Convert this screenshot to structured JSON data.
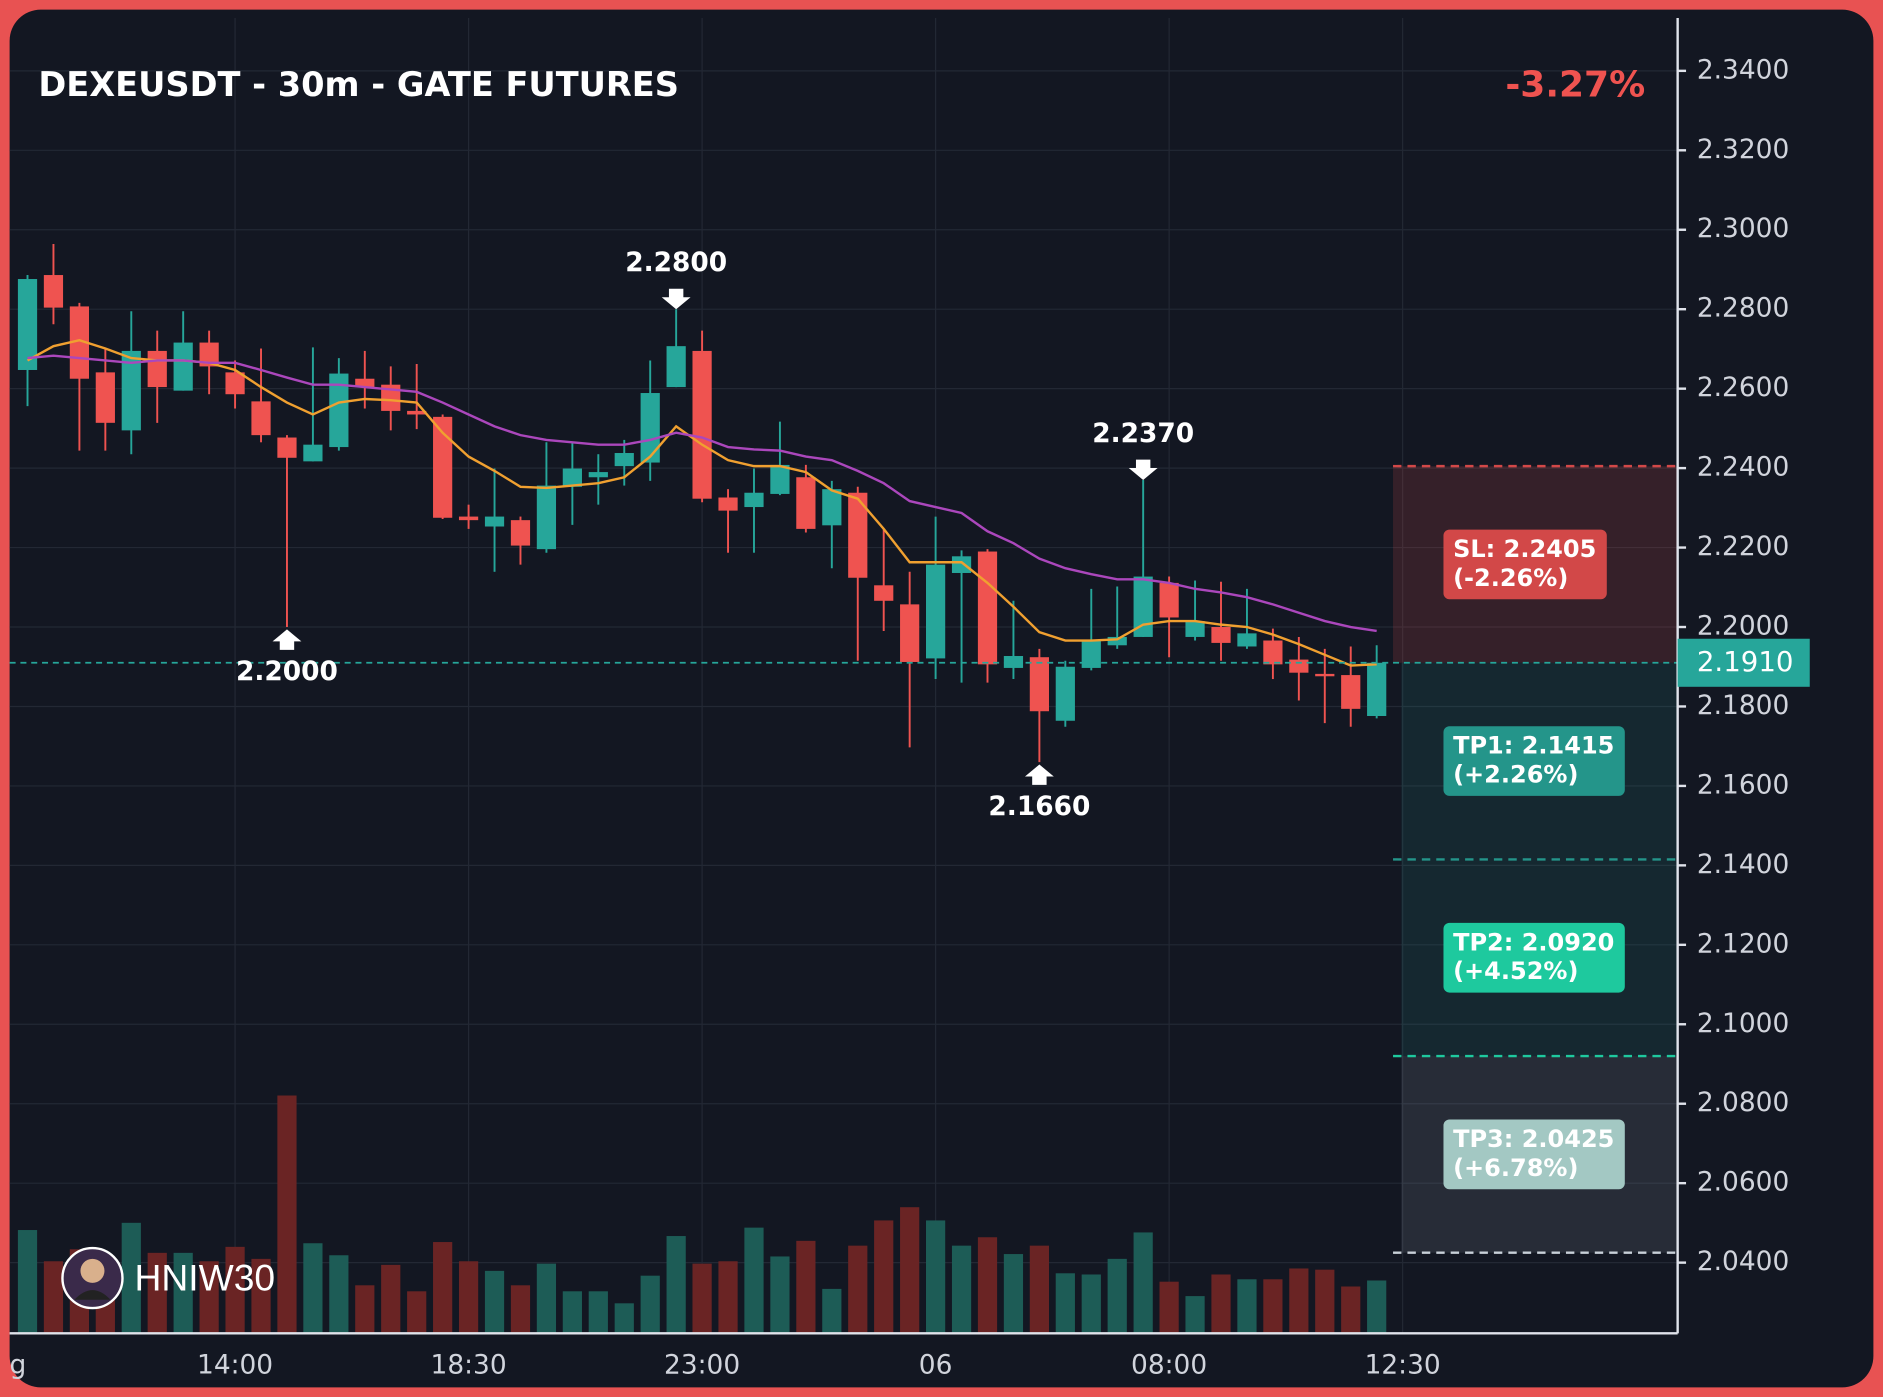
{
  "chart_data": {
    "type": "candlestick",
    "title": "DEXEUSDT - 30m - GATE FUTURES",
    "change_label": "-3.27%",
    "watermark": "HNIW30",
    "up_color": "#26a69a",
    "down_color": "#ef5350",
    "open": [
      2.2647,
      2.2886,
      2.2807,
      2.2641,
      2.2495,
      2.2695,
      2.2595,
      2.2716,
      2.2641,
      2.2568,
      2.2477,
      2.2417,
      2.2453,
      2.2625,
      2.261,
      2.2544,
      2.2529,
      2.2278,
      2.2253,
      2.2269,
      2.2196,
      2.2353,
      2.2377,
      2.2405,
      2.2414,
      2.2604,
      2.2695,
      2.2326,
      2.2302,
      2.2335,
      2.2377,
      2.2256,
      2.2338,
      2.2105,
      2.2057,
      2.1921,
      2.2136,
      2.219,
      2.1897,
      2.1924,
      2.1764,
      2.1897,
      2.1954,
      2.1975,
      2.2111,
      2.1975,
      2.2,
      2.1951,
      2.1966,
      2.1918,
      2.1882,
      2.1879,
      2.1776
    ],
    "high": [
      2.2886,
      2.2964,
      2.2816,
      2.2701,
      2.2795,
      2.2746,
      2.2795,
      2.2746,
      2.2671,
      2.2701,
      2.2483,
      2.2704,
      2.2677,
      2.2695,
      2.2656,
      2.2662,
      2.2535,
      2.2308,
      2.2399,
      2.2278,
      2.2465,
      2.2465,
      2.2435,
      2.2471,
      2.2671,
      2.28,
      2.2746,
      2.2347,
      2.2399,
      2.2517,
      2.2408,
      2.2368,
      2.2353,
      2.2247,
      2.2139,
      2.2278,
      2.2193,
      2.2196,
      2.2066,
      2.1945,
      2.1915,
      2.2096,
      2.2102,
      2.237,
      2.2127,
      2.2117,
      2.2114,
      2.2096,
      2.1996,
      2.1975,
      2.1945,
      2.1951,
      2.1954
    ],
    "low": [
      2.2556,
      2.2762,
      2.2444,
      2.2444,
      2.2435,
      2.2514,
      2.2595,
      2.2586,
      2.255,
      2.2465,
      2.2,
      2.2417,
      2.2444,
      2.255,
      2.2495,
      2.2498,
      2.2272,
      2.2247,
      2.2139,
      2.2157,
      2.2187,
      2.2257,
      2.2308,
      2.2356,
      2.2368,
      2.2604,
      2.2314,
      2.2187,
      2.2187,
      2.2332,
      2.2238,
      2.2148,
      2.1915,
      2.199,
      2.1697,
      2.1869,
      2.186,
      2.186,
      2.1869,
      2.166,
      2.1749,
      2.1891,
      2.1945,
      2.1975,
      2.1924,
      2.1966,
      2.1915,
      2.1945,
      2.1869,
      2.1815,
      2.1758,
      2.1749,
      2.177
    ],
    "close": [
      2.2876,
      2.2804,
      2.2625,
      2.2514,
      2.2695,
      2.2604,
      2.2716,
      2.2656,
      2.2586,
      2.2483,
      2.2426,
      2.2459,
      2.2638,
      2.2604,
      2.2544,
      2.2535,
      2.2275,
      2.2269,
      2.2278,
      2.2205,
      2.2356,
      2.2399,
      2.239,
      2.2438,
      2.2589,
      2.2707,
      2.2323,
      2.2293,
      2.2338,
      2.2408,
      2.2247,
      2.2347,
      2.2124,
      2.2066,
      2.1912,
      2.2157,
      2.2178,
      2.1906,
      2.1927,
      2.1788,
      2.19,
      2.1966,
      2.1975,
      2.2127,
      2.2024,
      2.2015,
      2.196,
      2.1984,
      2.1906,
      2.1885,
      2.1876,
      2.1794,
      2.191
    ],
    "volume": [
      86,
      60,
      70,
      60,
      92,
      67,
      67,
      60,
      72,
      62,
      198,
      75,
      65,
      40,
      57,
      35,
      76,
      60,
      52,
      40,
      58,
      35,
      35,
      25,
      48,
      81,
      58,
      60,
      88,
      64,
      77,
      37,
      73,
      94,
      105,
      94,
      73,
      80,
      66,
      73,
      50,
      49,
      62,
      84,
      43,
      31,
      49,
      45,
      45,
      54,
      53,
      39,
      44
    ],
    "volume_ylim": [
      0,
      200
    ],
    "volume_up_color": "#1d5c56",
    "volume_down_color": "#6a2424",
    "series": [
      {
        "color": "#f0a030",
        "values": [
          2.2671,
          2.2707,
          2.2722,
          2.2701,
          2.2677,
          2.2671,
          2.2671,
          2.2665,
          2.2647,
          2.2604,
          2.2565,
          2.2535,
          2.2565,
          2.2574,
          2.2571,
          2.2565,
          2.2489,
          2.2429,
          2.2393,
          2.2353,
          2.235,
          2.2356,
          2.2362,
          2.2377,
          2.2429,
          2.2505,
          2.2459,
          2.242,
          2.2405,
          2.2405,
          2.239,
          2.2344,
          2.2323,
          2.2247,
          2.2163,
          2.2163,
          2.2163,
          2.2111,
          2.2051,
          2.1987,
          2.1966,
          2.1966,
          2.1969,
          2.2006,
          2.2015,
          2.2015,
          2.2006,
          2.2,
          2.1981,
          2.1957,
          2.193,
          2.1903,
          2.1906
        ]
      },
      {
        "color": "#ab47bc",
        "values": [
          2.2677,
          2.2683,
          2.2677,
          2.2671,
          2.2665,
          2.2671,
          2.2671,
          2.2665,
          2.2665,
          2.2647,
          2.2628,
          2.261,
          2.261,
          2.2604,
          2.2598,
          2.2592,
          2.2565,
          2.2535,
          2.2505,
          2.2483,
          2.2471,
          2.2465,
          2.2459,
          2.2459,
          2.2471,
          2.2489,
          2.2477,
          2.2453,
          2.2447,
          2.2444,
          2.2429,
          2.242,
          2.2393,
          2.2362,
          2.2317,
          2.2302,
          2.2287,
          2.2241,
          2.2211,
          2.2172,
          2.2148,
          2.2133,
          2.212,
          2.212,
          2.2111,
          2.2096,
          2.2087,
          2.2075,
          2.2057,
          2.2036,
          2.2015,
          2.2,
          2.199
        ]
      }
    ],
    "xlim": [
      -0.69,
      63.6
    ],
    "xticks": [
      {
        "value": -0.37,
        "label": "g"
      },
      {
        "value": 8,
        "label": "14:00"
      },
      {
        "value": 17,
        "label": "18:30"
      },
      {
        "value": 26,
        "label": "23:00"
      },
      {
        "value": 35,
        "label": "06"
      },
      {
        "value": 44,
        "label": "08:00"
      },
      {
        "value": 53,
        "label": "12:30"
      }
    ],
    "ylim": [
      2.0222,
      2.3533
    ],
    "yticks": [
      {
        "value": 2.34,
        "label": "2.3400"
      },
      {
        "value": 2.32,
        "label": "2.3200"
      },
      {
        "value": 2.3,
        "label": "2.3000"
      },
      {
        "value": 2.28,
        "label": "2.2800"
      },
      {
        "value": 2.26,
        "label": "2.2600"
      },
      {
        "value": 2.24,
        "label": "2.2400"
      },
      {
        "value": 2.22,
        "label": "2.2200"
      },
      {
        "value": 2.2,
        "label": "2.2000"
      },
      {
        "value": 2.18,
        "label": "2.1800"
      },
      {
        "value": 2.16,
        "label": "2.1600"
      },
      {
        "value": 2.14,
        "label": "2.1400"
      },
      {
        "value": 2.12,
        "label": "2.1200"
      },
      {
        "value": 2.1,
        "label": "2.1000"
      },
      {
        "value": 2.08,
        "label": "2.0800"
      },
      {
        "value": 2.06,
        "label": "2.0600"
      },
      {
        "value": 2.04,
        "label": "2.0400"
      }
    ],
    "grid": true,
    "annotations": [
      {
        "label": "2.2800",
        "x": 25,
        "value": 2.28,
        "side": "above"
      },
      {
        "label": "2.2000",
        "x": 10,
        "value": 2.2,
        "side": "below"
      },
      {
        "label": "2.2370",
        "x": 43,
        "value": 2.237,
        "side": "above"
      },
      {
        "label": "2.1660",
        "x": 39,
        "value": 2.166,
        "side": "below"
      }
    ],
    "last_price": {
      "value": 2.191,
      "label": "2.1910",
      "color": "#26a69a"
    },
    "stop_loss": {
      "value": 2.2405,
      "label": "SL: 2.2405",
      "change": "(-2.26%)",
      "color": "#d24848"
    },
    "targets": [
      {
        "value": 2.1415,
        "label": "TP1: 2.1415",
        "change": "(+2.26%)",
        "color": "#24958a"
      },
      {
        "value": 2.092,
        "label": "TP2: 2.0920",
        "change": "(+4.52%)",
        "color": "#1ec99e"
      },
      {
        "value": 2.0425,
        "label": "TP3: 2.0425",
        "change": "(+6.78%)",
        "color": "#a3c8c3"
      }
    ]
  }
}
